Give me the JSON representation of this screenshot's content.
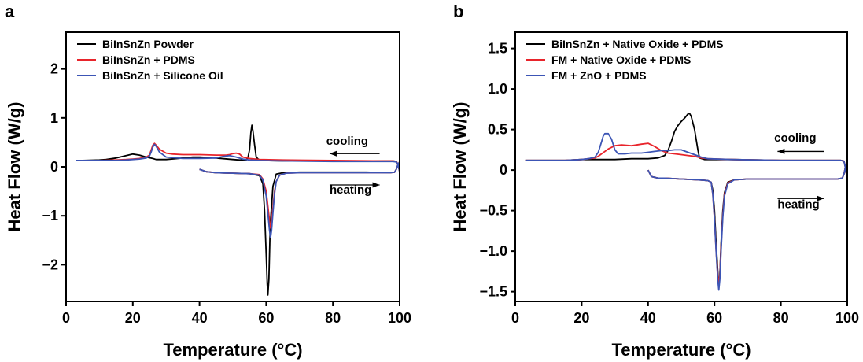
{
  "chart_data": [
    {
      "panel_label": "a",
      "type": "line",
      "xlabel": "Temperature (°C)",
      "ylabel": "Heat Flow (W/g)",
      "xlim": [
        0,
        100
      ],
      "ylim": [
        -2.75,
        2.75
      ],
      "xticks": [
        0,
        20,
        40,
        60,
        80,
        100
      ],
      "xtick_labels": [
        "0",
        "20",
        "40",
        "60",
        "80",
        "100"
      ],
      "yticks": [
        -2,
        -1,
        0,
        1,
        2
      ],
      "ytick_labels": [
        "−2",
        "−1",
        "0",
        "1",
        "2"
      ],
      "legend_position": "top-left",
      "annotations": [
        {
          "text": "cooling",
          "x": 78,
          "y": 0.45,
          "arrow": "left",
          "arrow_from": 94,
          "arrow_to": 79,
          "arrow_y": 0.27
        },
        {
          "text": "heating",
          "x": 79,
          "y": -0.55,
          "arrow": "right",
          "arrow_from": 79,
          "arrow_to": 94,
          "arrow_y": -0.37
        }
      ],
      "series": [
        {
          "name": "BiInSnZn Powder",
          "color": "#000000",
          "cooling": {
            "x": [
              100,
              99.5,
              99,
              98,
              95,
              80,
              65,
              58,
              57,
              56.5,
              56,
              55.7,
              55.4,
              55,
              54.5,
              54,
              52,
              50,
              45,
              40,
              38,
              35,
              30,
              27,
              26,
              24,
              22,
              20,
              18,
              15,
              12,
              10,
              5,
              3
            ],
            "y": [
              -0.1,
              0.05,
              0.11,
              0.12,
              0.12,
              0.12,
              0.12,
              0.13,
              0.2,
              0.45,
              0.75,
              0.85,
              0.7,
              0.35,
              0.18,
              0.14,
              0.14,
              0.15,
              0.18,
              0.2,
              0.2,
              0.18,
              0.15,
              0.15,
              0.17,
              0.2,
              0.24,
              0.26,
              0.23,
              0.18,
              0.15,
              0.14,
              0.13,
              0.13
            ]
          },
          "heating": {
            "x": [
              40,
              42,
              45,
              50,
              55,
              58,
              59,
              59.5,
              60,
              60.3,
              60.5,
              60.8,
              61.2,
              62,
              63,
              65,
              70,
              80,
              90,
              97,
              98.5,
              99,
              99.5,
              100
            ],
            "y": [
              -0.05,
              -0.1,
              -0.12,
              -0.13,
              -0.14,
              -0.18,
              -0.35,
              -0.9,
              -1.8,
              -2.4,
              -2.62,
              -2.3,
              -1.2,
              -0.4,
              -0.15,
              -0.12,
              -0.11,
              -0.11,
              -0.11,
              -0.12,
              -0.11,
              -0.05,
              0.05,
              0.1
            ]
          }
        },
        {
          "name": "BiInSnZn + PDMS",
          "color": "#e8242b",
          "cooling": {
            "x": [
              100,
              99.5,
              99,
              98,
              95,
              80,
              65,
              58,
              55,
              53,
              52,
              51,
              50,
              49,
              48,
              45,
              40,
              38,
              35,
              32,
              30,
              28,
              27,
              26.5,
              26,
              25.5,
              25,
              24,
              22,
              20,
              18,
              15,
              10,
              5,
              3
            ],
            "y": [
              -0.1,
              0.05,
              0.11,
              0.12,
              0.12,
              0.13,
              0.14,
              0.15,
              0.17,
              0.2,
              0.26,
              0.28,
              0.27,
              0.25,
              0.24,
              0.24,
              0.25,
              0.25,
              0.25,
              0.26,
              0.28,
              0.36,
              0.44,
              0.48,
              0.44,
              0.34,
              0.24,
              0.2,
              0.17,
              0.16,
              0.15,
              0.14,
              0.13,
              0.13,
              0.13
            ]
          },
          "heating": {
            "x": [
              40,
              42,
              45,
              50,
              55,
              58,
              59,
              60,
              60.5,
              61,
              61.3,
              61.6,
              62,
              62.5,
              63,
              64,
              66,
              70,
              80,
              90,
              97,
              98.5,
              99,
              99.5,
              100
            ],
            "y": [
              -0.05,
              -0.1,
              -0.12,
              -0.13,
              -0.14,
              -0.16,
              -0.25,
              -0.5,
              -0.8,
              -1.1,
              -1.25,
              -1.15,
              -0.85,
              -0.5,
              -0.3,
              -0.17,
              -0.13,
              -0.12,
              -0.12,
              -0.12,
              -0.12,
              -0.11,
              -0.05,
              0.05,
              0.1
            ]
          }
        },
        {
          "name": "BiInSnZn + Silicone Oil",
          "color": "#3c55b5",
          "cooling": {
            "x": [
              100,
              99.5,
              99,
              98,
              95,
              80,
              65,
              58,
              55,
              53,
              51,
              49,
              47,
              45,
              40,
              35,
              30,
              28,
              27,
              26.5,
              26,
              25.5,
              25,
              24,
              22,
              20,
              18,
              15,
              10,
              5,
              3
            ],
            "y": [
              -0.1,
              0.05,
              0.1,
              0.11,
              0.11,
              0.11,
              0.12,
              0.13,
              0.14,
              0.16,
              0.2,
              0.23,
              0.21,
              0.18,
              0.17,
              0.17,
              0.2,
              0.3,
              0.42,
              0.46,
              0.4,
              0.3,
              0.22,
              0.18,
              0.16,
              0.15,
              0.14,
              0.13,
              0.13,
              0.13,
              0.13
            ]
          },
          "heating": {
            "x": [
              40,
              42,
              45,
              50,
              55,
              58,
              59,
              60,
              60.5,
              61,
              61.3,
              61.6,
              62,
              62.5,
              63,
              64,
              66,
              70,
              80,
              90,
              97,
              98.5,
              99,
              99.5,
              100
            ],
            "y": [
              -0.05,
              -0.1,
              -0.12,
              -0.13,
              -0.14,
              -0.17,
              -0.27,
              -0.6,
              -0.95,
              -1.3,
              -1.45,
              -1.3,
              -0.95,
              -0.55,
              -0.3,
              -0.17,
              -0.13,
              -0.12,
              -0.12,
              -0.12,
              -0.12,
              -0.11,
              -0.05,
              0.05,
              0.1
            ]
          }
        }
      ]
    },
    {
      "panel_label": "b",
      "type": "line",
      "xlabel": "Temperature (°C)",
      "ylabel": "Heat Flow (W/g)",
      "xlim": [
        0,
        100
      ],
      "ylim": [
        -1.62,
        1.7
      ],
      "xticks": [
        0,
        20,
        40,
        60,
        80,
        100
      ],
      "xtick_labels": [
        "0",
        "20",
        "40",
        "60",
        "80",
        "100"
      ],
      "yticks": [
        -1.5,
        -1.0,
        -0.5,
        0,
        0.5,
        1.0,
        1.5
      ],
      "ytick_labels": [
        "−1.5",
        "−1.0",
        "−0.5",
        "0",
        "0.5",
        "1.0",
        "1.5"
      ],
      "legend_position": "top-left",
      "annotations": [
        {
          "text": "cooling",
          "x": 78,
          "y": 0.35,
          "arrow": "left",
          "arrow_from": 93,
          "arrow_to": 79,
          "arrow_y": 0.23
        },
        {
          "text": "heating",
          "x": 79,
          "y": -0.47,
          "arrow": "right",
          "arrow_from": 79,
          "arrow_to": 93,
          "arrow_y": -0.35
        }
      ],
      "series": [
        {
          "name": "BiInSnZn + Native Oxide + PDMS",
          "color": "#000000",
          "cooling": {
            "x": [
              100,
              99.5,
              99,
              98,
              95,
              80,
              65,
              57,
              55.5,
              55,
              54,
              53,
              52.5,
              52,
              51,
              50,
              49,
              48,
              47,
              46,
              45,
              43,
              40,
              35,
              30,
              25,
              20,
              15,
              10,
              5,
              3
            ],
            "y": [
              -0.12,
              0.02,
              0.11,
              0.12,
              0.12,
              0.12,
              0.13,
              0.13,
              0.15,
              0.25,
              0.5,
              0.66,
              0.7,
              0.69,
              0.64,
              0.6,
              0.55,
              0.48,
              0.35,
              0.24,
              0.18,
              0.15,
              0.14,
              0.14,
              0.13,
              0.13,
              0.13,
              0.12,
              0.12,
              0.12,
              0.12
            ]
          },
          "heating": {
            "x": [
              40,
              41,
              43,
              45,
              50,
              55,
              58,
              59,
              59.5,
              60,
              60.5,
              61,
              61.3,
              61.6,
              62,
              62.5,
              63,
              64,
              66,
              70,
              80,
              90,
              97,
              98.5,
              99,
              99.5,
              100
            ],
            "y": [
              0.0,
              -0.08,
              -0.1,
              -0.1,
              -0.11,
              -0.12,
              -0.13,
              -0.15,
              -0.25,
              -0.5,
              -0.9,
              -1.25,
              -1.43,
              -1.3,
              -0.9,
              -0.5,
              -0.28,
              -0.15,
              -0.12,
              -0.11,
              -0.11,
              -0.11,
              -0.11,
              -0.1,
              -0.05,
              0.05,
              0.1
            ]
          }
        },
        {
          "name": "FM + Native Oxide + PDMS",
          "color": "#e8242b",
          "cooling": {
            "x": [
              100,
              99.5,
              99,
              98,
              95,
              80,
              65,
              58,
              56,
              54,
              52,
              50,
              48,
              46,
              44,
              42,
              40,
              38,
              35,
              32,
              30,
              28,
              26,
              25,
              24,
              22,
              20,
              15,
              10,
              5,
              3
            ],
            "y": [
              -0.12,
              0.02,
              0.11,
              0.12,
              0.12,
              0.12,
              0.13,
              0.14,
              0.15,
              0.17,
              0.18,
              0.19,
              0.2,
              0.21,
              0.24,
              0.29,
              0.33,
              0.32,
              0.3,
              0.31,
              0.3,
              0.26,
              0.2,
              0.17,
              0.15,
              0.14,
              0.13,
              0.12,
              0.12,
              0.12,
              0.12
            ]
          },
          "heating": {
            "x": [
              40,
              41,
              43,
              45,
              50,
              55,
              58,
              59,
              59.5,
              60,
              60.5,
              61,
              61.3,
              61.6,
              62,
              62.5,
              63,
              64,
              66,
              70,
              80,
              90,
              97,
              98.5,
              99,
              99.5,
              100
            ],
            "y": [
              0.0,
              -0.08,
              -0.1,
              -0.1,
              -0.11,
              -0.12,
              -0.13,
              -0.15,
              -0.3,
              -0.6,
              -1.0,
              -1.3,
              -1.4,
              -1.3,
              -0.95,
              -0.55,
              -0.3,
              -0.16,
              -0.12,
              -0.11,
              -0.11,
              -0.11,
              -0.11,
              -0.1,
              -0.05,
              0.05,
              0.1
            ]
          }
        },
        {
          "name": "FM + ZnO + PDMS",
          "color": "#3c55b5",
          "cooling": {
            "x": [
              100,
              99.5,
              99,
              98,
              95,
              80,
              65,
              58,
              56,
              54,
              52,
              50,
              48,
              46,
              44,
              42,
              40,
              38,
              35,
              33,
              31,
              30,
              29,
              28,
              27,
              26.5,
              26,
              25,
              24,
              22,
              20,
              15,
              10,
              5,
              3
            ],
            "y": [
              -0.12,
              0.02,
              0.11,
              0.12,
              0.12,
              0.12,
              0.13,
              0.14,
              0.16,
              0.19,
              0.22,
              0.25,
              0.25,
              0.24,
              0.24,
              0.23,
              0.22,
              0.21,
              0.21,
              0.2,
              0.2,
              0.25,
              0.38,
              0.45,
              0.45,
              0.42,
              0.35,
              0.22,
              0.16,
              0.14,
              0.13,
              0.12,
              0.12,
              0.12,
              0.12
            ]
          },
          "heating": {
            "x": [
              40,
              41,
              43,
              45,
              50,
              55,
              58,
              59,
              59.5,
              60,
              60.5,
              61,
              61.3,
              61.6,
              62,
              62.5,
              63,
              64,
              66,
              70,
              80,
              90,
              97,
              98.5,
              99,
              99.5,
              100
            ],
            "y": [
              0.0,
              -0.08,
              -0.1,
              -0.1,
              -0.11,
              -0.12,
              -0.13,
              -0.15,
              -0.3,
              -0.6,
              -1.0,
              -1.35,
              -1.48,
              -1.35,
              -1.0,
              -0.58,
              -0.32,
              -0.17,
              -0.12,
              -0.11,
              -0.11,
              -0.11,
              -0.11,
              -0.1,
              -0.05,
              0.05,
              0.1
            ]
          }
        }
      ]
    }
  ]
}
